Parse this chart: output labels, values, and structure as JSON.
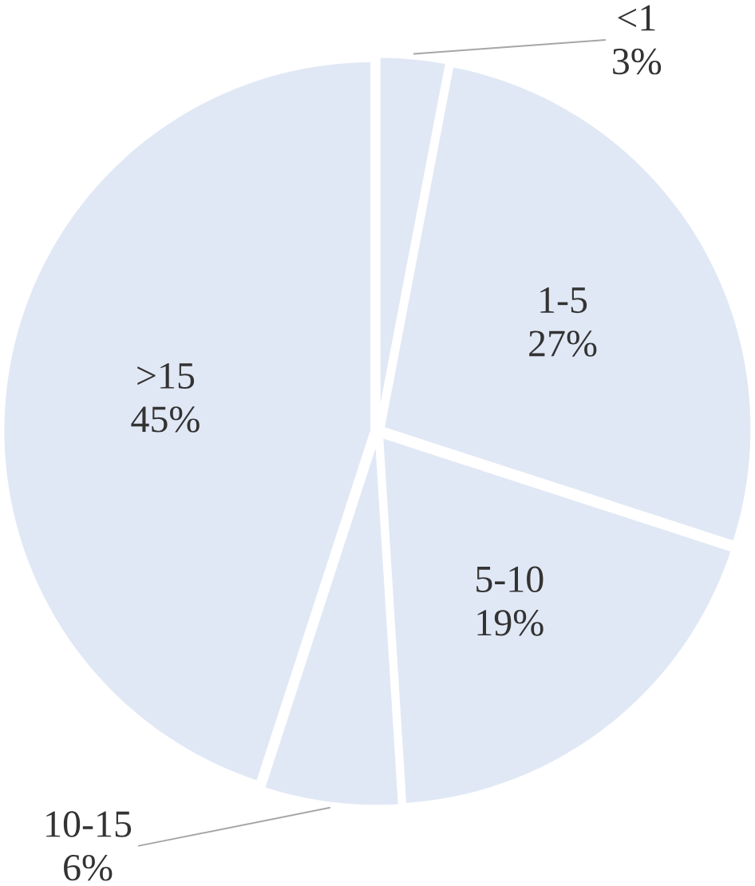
{
  "chart_data": {
    "type": "pie",
    "categories": [
      "<1",
      "1-5",
      "5-10",
      "10-15",
      ">15"
    ],
    "values": [
      3,
      27,
      19,
      6,
      45
    ],
    "value_labels": [
      "3%",
      "27%",
      "19%",
      "6%",
      "45%"
    ],
    "colors": [
      "#e1e8f5",
      "#e1e8f5",
      "#e1e8f5",
      "#e1e8f5",
      "#e1e8f5"
    ]
  }
}
